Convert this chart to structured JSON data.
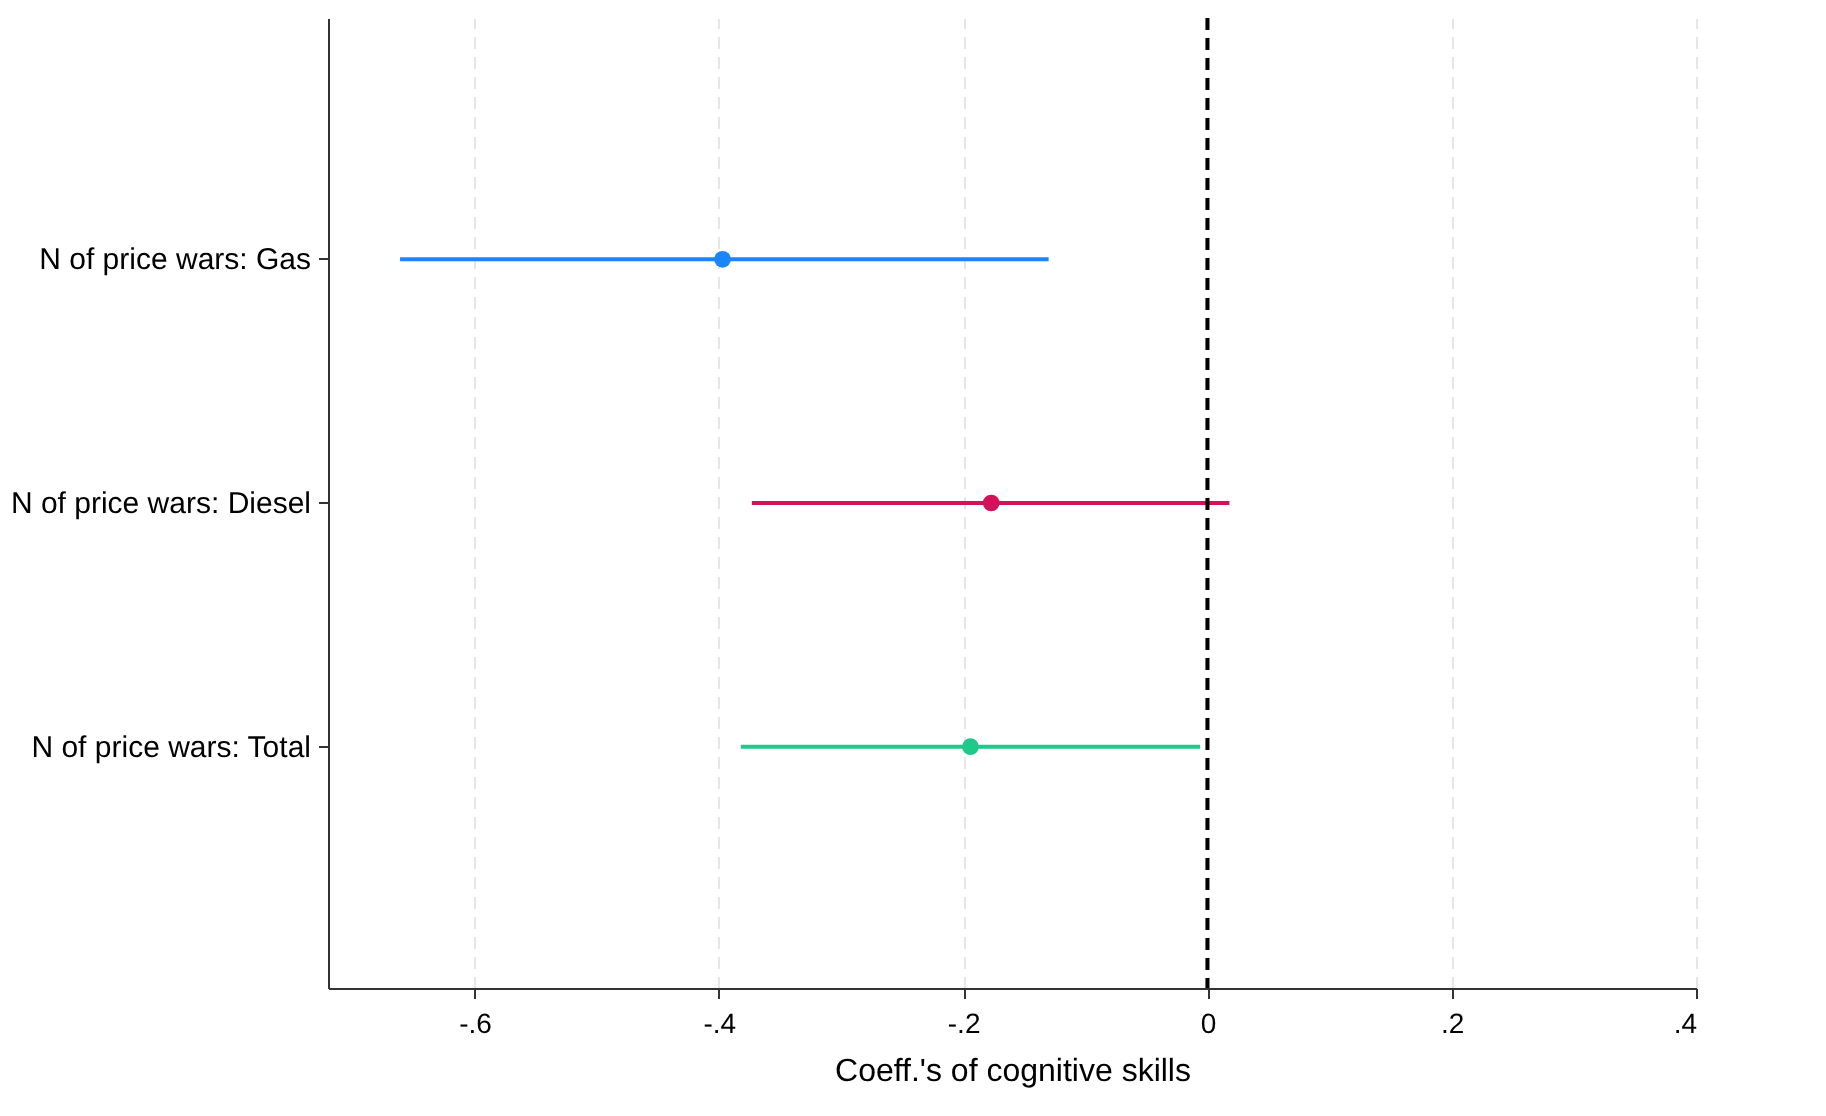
{
  "chart_data": {
    "type": "scatter",
    "orientation": "horizontal",
    "xlabel": "Coeff.'s of cognitive skills",
    "categories": [
      "N of price wars: Gas",
      "N of price wars: Diesel",
      "N of price wars: Total"
    ],
    "values": [
      -0.397,
      -0.177,
      -0.194
    ],
    "errors": [
      [
        -0.661,
        -0.13
      ],
      [
        -0.373,
        0.018
      ],
      [
        -0.382,
        -0.006
      ]
    ],
    "colors": [
      "#1a85ff",
      "#d41159",
      "#1ec98a"
    ],
    "xlim": [
      -0.72,
      0.4
    ],
    "xticks": [
      {
        "value": -0.6,
        "label": "-.6"
      },
      {
        "value": -0.4,
        "label": "-.4"
      },
      {
        "value": -0.2,
        "label": "-.2"
      },
      0,
      {
        "value": 0.2,
        "label": ".2"
      },
      {
        "value": 0.4,
        "label": ".4"
      }
    ],
    "ref_lines": [
      {
        "axis": "x",
        "value": 0,
        "color": "#000000",
        "line_style": "dashed"
      }
    ],
    "grid": "x",
    "marker": "circle"
  }
}
